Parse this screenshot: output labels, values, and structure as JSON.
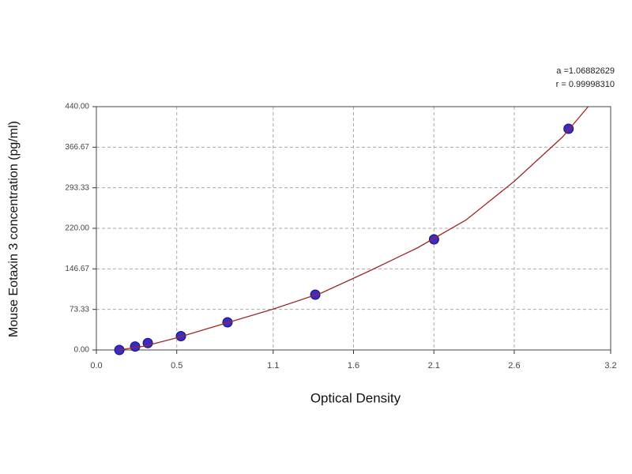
{
  "chart_data": {
    "type": "scatter",
    "xlabel": "Optical Density",
    "ylabel": "Mouse Eotaxin 3 concentration (pg/ml)",
    "annotations": [
      "a =1.06882629",
      "r = 0.99998310"
    ],
    "xlim": [
      0,
      3.2
    ],
    "xticks": [
      {
        "value": 0,
        "label": "0.0"
      },
      0.5,
      1.1,
      1.6,
      2.1,
      2.6,
      3.2
    ],
    "ylim": [
      0,
      440
    ],
    "yticks": [
      {
        "value": 0,
        "label": "0.00"
      },
      {
        "value": 73.33,
        "label": "73.33"
      },
      {
        "value": 146.67,
        "label": "146.67"
      },
      {
        "value": 220,
        "label": "220.00"
      },
      {
        "value": 293.33,
        "label": "293.33"
      },
      {
        "value": 366.67,
        "label": "366.67"
      },
      {
        "value": 440,
        "label": "440.00"
      }
    ],
    "grid": true,
    "series": [
      {
        "type": "scatter",
        "color": "#3a2bc4",
        "x": [
          0.143,
          0.241,
          0.32,
          0.526,
          0.816,
          1.362,
          2.101,
          2.938
        ],
        "values": [
          0,
          6.25,
          12.5,
          25,
          50,
          100,
          200,
          400
        ]
      },
      {
        "type": "line",
        "color": "#9b2a2a",
        "x": [
          0.14,
          0.3,
          0.5,
          0.8,
          1.1,
          1.4,
          1.7,
          2.0,
          2.3,
          2.6,
          2.9,
          3.06
        ],
        "values": [
          0,
          7,
          22,
          48,
          74,
          103,
          143,
          185,
          235,
          305,
          385,
          440
        ]
      }
    ]
  }
}
